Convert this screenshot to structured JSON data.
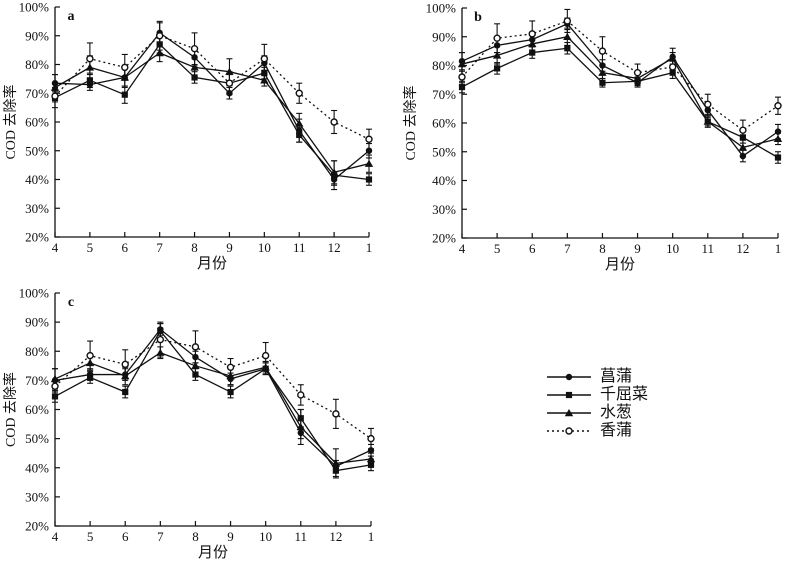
{
  "figure": {
    "background": "#ffffff",
    "ink": "#111111"
  },
  "legend": {
    "items": [
      {
        "label": "菖蒲",
        "marker": "filled-circle",
        "line": "solid"
      },
      {
        "label": "千屈菜",
        "marker": "filled-square",
        "line": "solid"
      },
      {
        "label": "水葱",
        "marker": "filled-triangle",
        "line": "solid"
      },
      {
        "label": "香蒲",
        "marker": "open-circle",
        "line": "dotted"
      }
    ]
  },
  "chart_data": [
    {
      "type": "line",
      "panel": "a",
      "xlabel": "月份",
      "ylabel": "COD 去除率",
      "x_categories": [
        "4",
        "5",
        "6",
        "7",
        "8",
        "9",
        "10",
        "11",
        "12",
        "1"
      ],
      "ylim": [
        20,
        100
      ],
      "ytick_labels": [
        "20%",
        "30%",
        "40%",
        "50%",
        "60%",
        "70%",
        "80%",
        "90%",
        "100%"
      ],
      "grid": false,
      "error_bars": true,
      "series": [
        {
          "name": "菖蒲",
          "marker": "filled-circle",
          "line": "solid",
          "values": [
            73.5,
            73,
            75.5,
            91,
            82.5,
            70,
            80.5,
            57,
            40,
            50
          ],
          "errors": [
            3,
            2,
            3,
            3.5,
            3,
            2,
            2.5,
            4,
            2,
            2.5
          ]
        },
        {
          "name": "千屈菜",
          "marker": "filled-square",
          "line": "solid",
          "values": [
            68.5,
            74.5,
            69.5,
            87,
            75.5,
            73.5,
            77,
            55.5,
            41.5,
            40
          ],
          "errors": [
            3.5,
            2.5,
            3,
            3,
            2,
            3,
            2,
            2.5,
            5,
            2
          ]
        },
        {
          "name": "水葱",
          "marker": "filled-triangle",
          "line": "solid",
          "values": [
            72,
            79,
            75.5,
            84,
            79,
            77.5,
            74.5,
            59.5,
            42.5,
            45.5
          ],
          "errors": [
            4.5,
            4,
            3.5,
            3,
            3,
            4.5,
            2,
            3.5,
            4,
            3
          ]
        },
        {
          "name": "香蒲",
          "marker": "open-circle",
          "line": "dotted",
          "values": [
            69,
            82,
            79,
            90,
            85.5,
            73.5,
            82,
            70,
            60,
            54
          ],
          "errors": [
            2,
            5.5,
            4.5,
            5,
            5.5,
            4,
            5,
            3.5,
            4,
            3.5
          ]
        }
      ]
    },
    {
      "type": "line",
      "panel": "b",
      "xlabel": "月份",
      "ylabel": "COD 去除率",
      "x_categories": [
        "4",
        "5",
        "6",
        "7",
        "8",
        "9",
        "10",
        "11",
        "12",
        "1"
      ],
      "ylim": [
        20,
        100
      ],
      "ytick_labels": [
        "20%",
        "30%",
        "40%",
        "50%",
        "60%",
        "70%",
        "80%",
        "90%",
        "100%"
      ],
      "grid": false,
      "error_bars": true,
      "series": [
        {
          "name": "菖蒲",
          "marker": "filled-circle",
          "line": "solid",
          "values": [
            81.5,
            87,
            89,
            94.5,
            80,
            74,
            83,
            64.5,
            48.5,
            57
          ],
          "errors": [
            3,
            2.5,
            2,
            2,
            2,
            1.5,
            3,
            2,
            2,
            2.5
          ]
        },
        {
          "name": "千屈菜",
          "marker": "filled-square",
          "line": "solid",
          "values": [
            72.5,
            79,
            84.5,
            86,
            74,
            74.5,
            77.5,
            60.5,
            55,
            48
          ],
          "errors": [
            2,
            2,
            2,
            2,
            1.5,
            1.5,
            2,
            1.5,
            2,
            2
          ]
        },
        {
          "name": "水葱",
          "marker": "filled-triangle",
          "line": "solid",
          "values": [
            80.5,
            83.5,
            87.5,
            90,
            77.5,
            75.5,
            82.5,
            60.5,
            51.5,
            54.5
          ],
          "errors": [
            4,
            3,
            3,
            3,
            3,
            2,
            2,
            2,
            3,
            2
          ]
        },
        {
          "name": "香蒲",
          "marker": "open-circle",
          "line": "dotted",
          "values": [
            76,
            89.5,
            91,
            95.5,
            85,
            77.5,
            79.5,
            66.5,
            57.5,
            66
          ],
          "errors": [
            2,
            5,
            4.5,
            4,
            5,
            3,
            2,
            3.5,
            3.5,
            3
          ]
        }
      ]
    },
    {
      "type": "line",
      "panel": "c",
      "xlabel": "月份",
      "ylabel": "COD 去除率",
      "x_categories": [
        "4",
        "5",
        "6",
        "7",
        "8",
        "9",
        "10",
        "11",
        "12",
        "1"
      ],
      "ylim": [
        20,
        100
      ],
      "ytick_labels": [
        "20%",
        "30%",
        "40%",
        "50%",
        "60%",
        "70%",
        "80%",
        "90%",
        "100%"
      ],
      "grid": false,
      "error_bars": true,
      "series": [
        {
          "name": "菖蒲",
          "marker": "filled-circle",
          "line": "solid",
          "values": [
            70,
            72,
            72,
            87.5,
            78,
            70.5,
            74,
            52,
            40.5,
            46
          ],
          "errors": [
            4,
            2,
            2,
            2,
            2,
            2,
            2,
            2,
            2,
            2
          ]
        },
        {
          "name": "千屈菜",
          "marker": "filled-square",
          "line": "solid",
          "values": [
            64.5,
            71,
            66,
            87,
            72,
            66,
            74,
            57,
            39,
            41
          ],
          "errors": [
            2,
            2,
            2,
            2.5,
            2,
            2,
            2,
            3,
            2,
            2
          ]
        },
        {
          "name": "水葱",
          "marker": "filled-triangle",
          "line": "solid",
          "values": [
            70.5,
            76,
            71.5,
            79.5,
            75,
            71.5,
            74.5,
            54,
            41.5,
            43
          ],
          "errors": [
            3.5,
            2.5,
            3,
            2,
            3,
            3,
            2,
            6,
            5,
            2
          ]
        },
        {
          "name": "香蒲",
          "marker": "open-circle",
          "line": "dotted",
          "values": [
            68,
            78.5,
            75.5,
            84,
            81.5,
            74.5,
            78.5,
            65,
            58.5,
            50
          ],
          "errors": [
            2,
            5,
            5,
            6,
            5.5,
            3,
            4.5,
            3.5,
            5,
            3.5
          ]
        }
      ]
    }
  ]
}
